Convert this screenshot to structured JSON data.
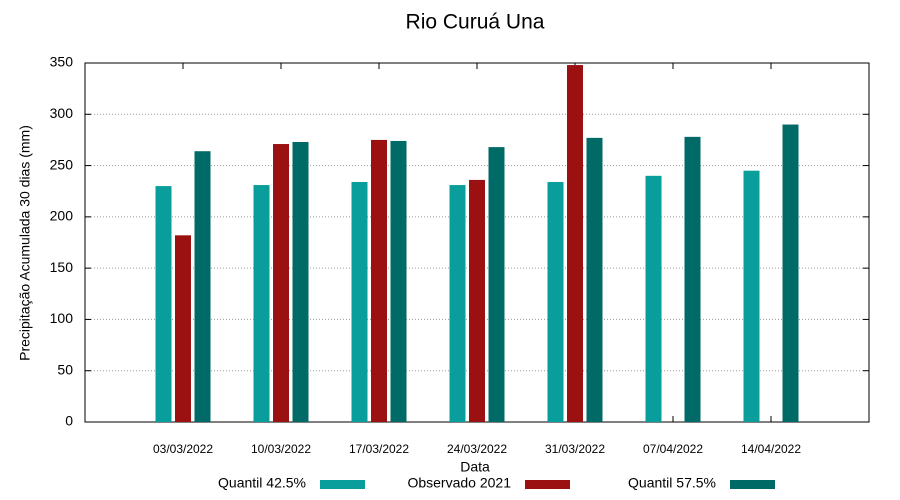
{
  "chart_data": {
    "type": "bar",
    "title": "Rio Curuá Una",
    "ylabel": "Precipitação Acumulada 30 dias (mm)",
    "xlabel": "Data",
    "categories": [
      "03/03/2022",
      "10/03/2022",
      "17/03/2022",
      "24/03/2022",
      "31/03/2022",
      "07/04/2022",
      "14/04/2022"
    ],
    "series": [
      {
        "name": "Quantil 42.5%",
        "color": "#099e9b",
        "values": [
          230,
          231,
          234,
          231,
          234,
          240,
          245
        ]
      },
      {
        "name": "Observado 2021",
        "color": "#9b1111",
        "values": [
          182,
          271,
          275,
          236,
          348,
          null,
          null
        ]
      },
      {
        "name": "Quantil 57.5%",
        "color": "#006a66",
        "values": [
          264,
          273,
          274,
          268,
          277,
          278,
          290
        ]
      }
    ],
    "ylim": [
      0,
      350
    ],
    "yticks": [
      0,
      50,
      100,
      150,
      200,
      250,
      300,
      350
    ],
    "grid": true,
    "legend": "bottom"
  }
}
